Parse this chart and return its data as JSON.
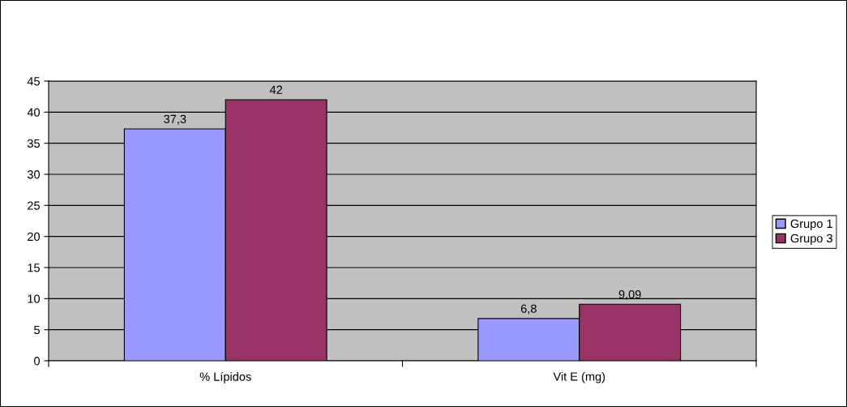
{
  "chart_data": {
    "type": "bar",
    "categories": [
      "% Lípidos",
      "Vit E (mg)"
    ],
    "series": [
      {
        "name": "Grupo 1",
        "color": "#9999ff",
        "values": [
          37.3,
          6.8
        ],
        "value_labels": [
          "37,3",
          "6,8"
        ]
      },
      {
        "name": "Grupo 3",
        "color": "#993366",
        "values": [
          42,
          9.09
        ],
        "value_labels": [
          "42",
          "9,09"
        ]
      }
    ],
    "ylim": [
      0,
      45
    ],
    "yticks": [
      0,
      5,
      10,
      15,
      20,
      25,
      30,
      35,
      40,
      45
    ],
    "grid": "y",
    "legend": "right"
  }
}
